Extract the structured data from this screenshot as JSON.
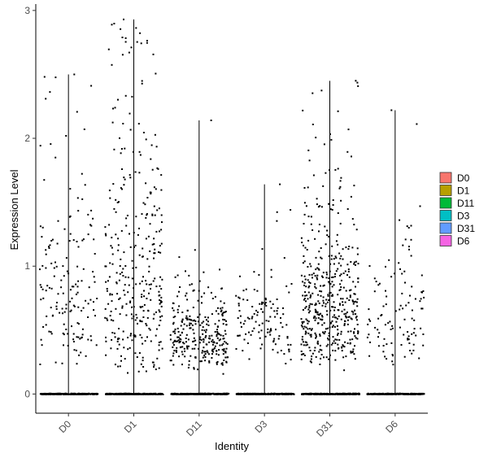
{
  "chart_data": {
    "type": "scatter",
    "subtype": "violin-jitter",
    "title": "",
    "xlabel": "Identity",
    "ylabel": "Expression Level",
    "categories": [
      "D0",
      "D1",
      "D11",
      "D3",
      "D31",
      "D6"
    ],
    "ylim": [
      -0.15,
      3.05
    ],
    "yticks": [
      0,
      1,
      2,
      3
    ],
    "grid": false,
    "legend": {
      "position": "right",
      "entries": [
        {
          "name": "D0",
          "color": "#F8766D"
        },
        {
          "name": "D1",
          "color": "#B79F00"
        },
        {
          "name": "D11",
          "color": "#00BA38"
        },
        {
          "name": "D3",
          "color": "#00BFC4"
        },
        {
          "name": "D31",
          "color": "#619CFF"
        },
        {
          "name": "D6",
          "color": "#F564E3"
        }
      ]
    },
    "series": [
      {
        "name": "D0",
        "max": 2.5,
        "n_zero": 260,
        "n_nonzero": 160,
        "mu": 0.75,
        "sigma": 0.55
      },
      {
        "name": "D1",
        "max": 2.93,
        "n_zero": 260,
        "n_nonzero": 330,
        "mu": 0.85,
        "sigma": 0.62
      },
      {
        "name": "D11",
        "max": 2.14,
        "n_zero": 300,
        "n_nonzero": 290,
        "mu": 0.45,
        "sigma": 0.35
      },
      {
        "name": "D3",
        "max": 1.64,
        "n_zero": 260,
        "n_nonzero": 120,
        "mu": 0.55,
        "sigma": 0.35
      },
      {
        "name": "D31",
        "max": 2.45,
        "n_zero": 300,
        "n_nonzero": 470,
        "mu": 0.7,
        "sigma": 0.5
      },
      {
        "name": "D6",
        "max": 2.22,
        "n_zero": 260,
        "n_nonzero": 110,
        "mu": 0.6,
        "sigma": 0.5
      }
    ],
    "point_color": "#000000"
  }
}
